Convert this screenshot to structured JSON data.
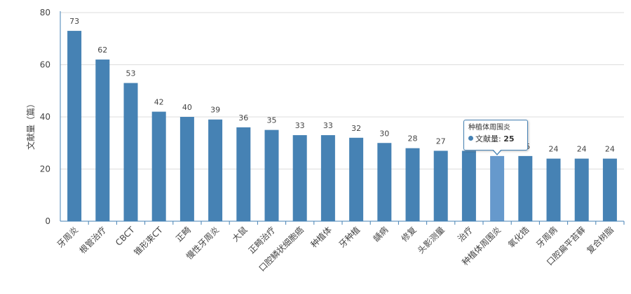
{
  "chart_data": {
    "type": "bar",
    "ylabel": "文献量（篇）",
    "ylim": [
      0,
      80
    ],
    "yticks": [
      0,
      20,
      40,
      60,
      80
    ],
    "grid": true,
    "categories": [
      "牙周炎",
      "根管治疗",
      "CBCT",
      "锥形束CT",
      "正畸",
      "慢性牙周炎",
      "大鼠",
      "正畸治疗",
      "口腔鳞状细胞癌",
      "种植体",
      "牙种植",
      "龋病",
      "修复",
      "头影测量",
      "治疗",
      "种植体周围炎",
      "氧化锆",
      "牙周病",
      "口腔扁平苔藓",
      "复合树脂"
    ],
    "series": [
      {
        "values": [
          73,
          62,
          53,
          42,
          40,
          39,
          36,
          35,
          33,
          33,
          32,
          30,
          28,
          27,
          27,
          25,
          25,
          24,
          24,
          24
        ]
      }
    ],
    "highlighted_index": 15
  },
  "tooltip": {
    "title": "种植体周围炎",
    "series_label": "文献量",
    "separator": ":",
    "value": "25"
  },
  "colors": {
    "bar": "#4682b4",
    "bar_highlight": "#6699cc",
    "grid": "#dddddd",
    "axis": "#4682b4",
    "text": "#444444"
  }
}
